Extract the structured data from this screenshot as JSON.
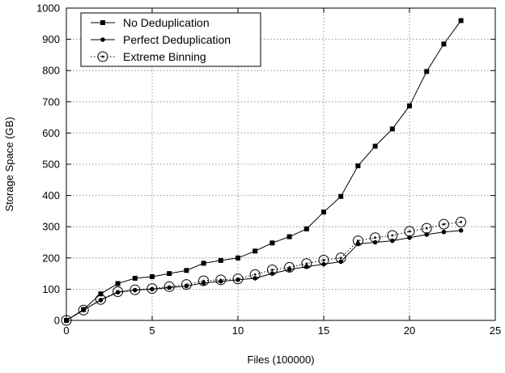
{
  "chart_data": {
    "type": "line",
    "title": "",
    "xlabel": "Files (100000)",
    "ylabel": "Storage Space (GB)",
    "xlim": [
      0,
      25
    ],
    "ylim": [
      0,
      1000
    ],
    "x_ticks": [
      0,
      5,
      10,
      15,
      20,
      25
    ],
    "y_ticks": [
      0,
      100,
      200,
      300,
      400,
      500,
      600,
      700,
      800,
      900,
      1000
    ],
    "x_tick_labels": [
      "0",
      "5",
      "10",
      "15",
      "20",
      "25"
    ],
    "y_tick_labels": [
      "0",
      "100",
      "200",
      "300",
      "400",
      "500",
      "600",
      "700",
      "800",
      "900",
      "1000"
    ],
    "grid": true,
    "legend_position": "top-left",
    "x": [
      0,
      1,
      2,
      3,
      4,
      5,
      6,
      7,
      8,
      9,
      10,
      11,
      12,
      13,
      14,
      15,
      16,
      17,
      18,
      19,
      20,
      21,
      22,
      23
    ],
    "series": [
      {
        "name": "No Deduplication",
        "marker": "square",
        "line_style": "solid",
        "values": [
          0,
          35,
          85,
          118,
          135,
          140,
          150,
          160,
          183,
          192,
          200,
          222,
          248,
          268,
          293,
          347,
          397,
          495,
          558,
          613,
          687,
          797,
          885,
          960
        ]
      },
      {
        "name": "Perfect Deduplication",
        "marker": "dot",
        "line_style": "solid",
        "values": [
          0,
          33,
          65,
          90,
          97,
          100,
          105,
          110,
          120,
          125,
          130,
          135,
          150,
          163,
          172,
          180,
          188,
          245,
          250,
          255,
          265,
          275,
          283,
          288
        ]
      },
      {
        "name": "Extreme Binning",
        "marker": "circle-dot",
        "line_style": "dotted",
        "values": [
          0,
          33,
          67,
          92,
          98,
          102,
          108,
          115,
          127,
          130,
          133,
          147,
          162,
          170,
          182,
          193,
          200,
          255,
          265,
          272,
          285,
          295,
          308,
          315
        ]
      }
    ]
  }
}
